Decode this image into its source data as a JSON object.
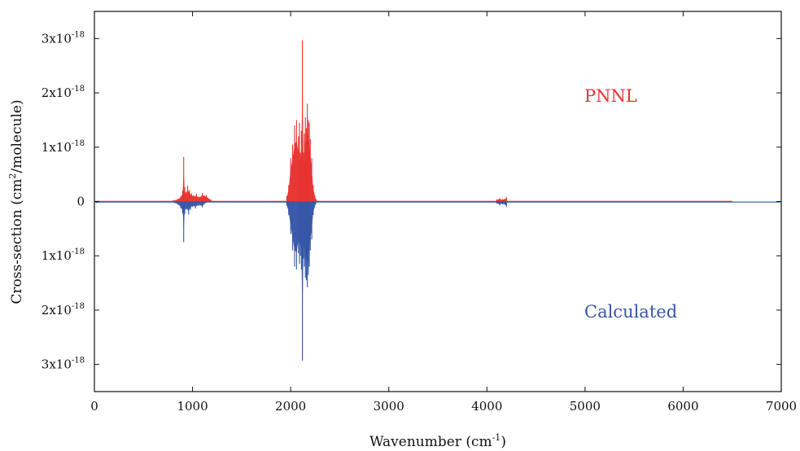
{
  "chart_data": {
    "type": "line",
    "xlabel": "Wavenumber (cm",
    "xlabel_sup": "-1",
    "xlabel_end": ")",
    "ylabel": "Cross-section (cm",
    "ylabel_sup": "2",
    "ylabel_end": "/molecule)",
    "xlim": [
      0,
      7000
    ],
    "ylim": [
      -3.5e-18,
      3.5e-18
    ],
    "x_ticks": [
      0,
      1000,
      2000,
      3000,
      4000,
      5000,
      6000,
      7000
    ],
    "x_tick_labels": [
      "0",
      "1000",
      "2000",
      "3000",
      "4000",
      "5000",
      "6000",
      "7000"
    ],
    "y_ticks": [
      3e-18,
      2e-18,
      1e-18,
      0,
      -1e-18,
      -2e-18,
      -3e-18
    ],
    "y_tick_labels": [
      {
        "base": "3x10",
        "exp": "-18"
      },
      {
        "base": "2x10",
        "exp": "-18"
      },
      {
        "base": "1x10",
        "exp": "-18"
      },
      {
        "base": "0",
        "exp": ""
      },
      {
        "base": "1x10",
        "exp": "-18"
      },
      {
        "base": "2x10",
        "exp": "-18"
      },
      {
        "base": "3x10",
        "exp": "-18"
      }
    ],
    "grid": false,
    "series": [
      {
        "name": "PNNL",
        "color": "#e8322f",
        "direction": "up",
        "x": [
          800,
          850,
          880,
          900,
          910,
          920,
          935,
          950,
          970,
          990,
          1010,
          1040,
          1070,
          1100,
          1140,
          1190,
          1960,
          1980,
          2000,
          2020,
          2040,
          2060,
          2080,
          2090,
          2100,
          2110,
          2120,
          2130,
          2140,
          2150,
          2160,
          2170,
          2180,
          2190,
          2200,
          2215,
          2230,
          2260,
          4100,
          4130,
          4160,
          4200
        ],
        "values": [
          2e-20,
          5e-20,
          1e-19,
          2e-19,
          8.2e-19,
          2.6e-19,
          1.8e-19,
          2.9e-19,
          2.1e-19,
          1.5e-19,
          1.2e-19,
          1.4e-19,
          9e-20,
          1.6e-19,
          1.2e-19,
          3e-20,
          1e-19,
          3e-19,
          8e-19,
          1.05e-18,
          1.4e-18,
          1.5e-18,
          1.2e-18,
          1.45e-18,
          9e-19,
          1.3e-18,
          2.97e-18,
          9e-19,
          1.25e-18,
          1.55e-18,
          1.35e-18,
          1.8e-18,
          1.5e-18,
          1.45e-18,
          1.15e-18,
          8e-19,
          3e-19,
          4e-20,
          4e-20,
          6e-20,
          4e-20,
          8e-20
        ]
      },
      {
        "name": "Calculated",
        "color": "#3556a8",
        "direction": "down",
        "x": [
          20,
          50,
          800,
          850,
          880,
          900,
          910,
          920,
          940,
          960,
          980,
          1000,
          1030,
          1060,
          1100,
          1140,
          1960,
          1980,
          2000,
          2020,
          2040,
          2060,
          2080,
          2090,
          2100,
          2110,
          2120,
          2130,
          2140,
          2150,
          2160,
          2170,
          2180,
          2190,
          2200,
          2215,
          2230,
          2260,
          4100,
          4130,
          4160,
          4200
        ],
        "values": [
          3e-20,
          2e-20,
          2e-20,
          6e-20,
          1.3e-19,
          2.2e-19,
          7.5e-19,
          2.3e-19,
          1.5e-19,
          2.4e-19,
          1.5e-19,
          1e-19,
          1.3e-19,
          8e-20,
          1.1e-19,
          2e-20,
          8e-20,
          2.5e-19,
          6e-19,
          9e-19,
          1.2e-18,
          1.25e-18,
          9.5e-19,
          1.15e-18,
          1e-18,
          1.25e-18,
          2.93e-18,
          1.05e-18,
          1.2e-18,
          1.4e-18,
          1.45e-18,
          1.58e-18,
          1.35e-18,
          1.2e-18,
          9e-19,
          7e-19,
          2.5e-19,
          3e-20,
          4e-20,
          7e-20,
          5e-20,
          1e-19
        ]
      }
    ]
  }
}
